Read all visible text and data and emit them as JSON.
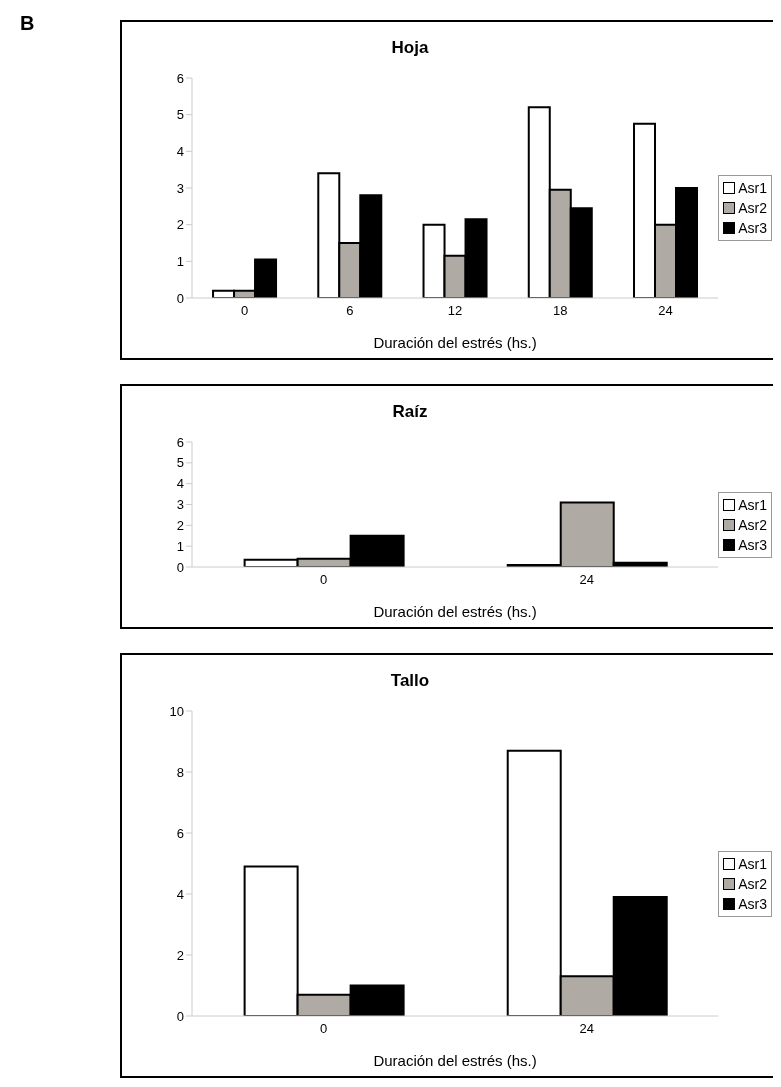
{
  "chart_data": [
    {
      "type": "bar",
      "title": "Hoja",
      "xlabel": "Duración del estrés (hs.)",
      "categories": [
        "0",
        "6",
        "12",
        "18",
        "24"
      ],
      "annotations": [
        "B"
      ],
      "series": [
        {
          "name": "Asr1",
          "color": "#ffffff",
          "values": [
            0.2,
            3.4,
            2.0,
            5.2,
            4.75
          ]
        },
        {
          "name": "Asr2",
          "color": "#b0aaa5",
          "values": [
            0.2,
            1.5,
            1.15,
            2.95,
            2.0
          ]
        },
        {
          "name": "Asr3",
          "color": "#000000",
          "values": [
            1.05,
            2.8,
            2.15,
            2.45,
            3.0
          ]
        }
      ],
      "ylim": [
        0,
        6
      ],
      "yticks": [
        0,
        1,
        2,
        3,
        4,
        5,
        6
      ],
      "legend": "right"
    },
    {
      "type": "bar",
      "title": "Raíz",
      "xlabel": "Duración del estrés (hs.)",
      "categories": [
        "0",
        "24"
      ],
      "series": [
        {
          "name": "Asr1",
          "color": "#ffffff",
          "values": [
            0.35,
            0.1
          ]
        },
        {
          "name": "Asr2",
          "color": "#b0aaa5",
          "values": [
            0.4,
            3.1
          ]
        },
        {
          "name": "Asr3",
          "color": "#000000",
          "values": [
            1.5,
            0.2
          ]
        }
      ],
      "ylim": [
        0,
        6
      ],
      "yticks": [
        0,
        1,
        2,
        3,
        4,
        5,
        6
      ],
      "legend": "right"
    },
    {
      "type": "bar",
      "title": "Tallo",
      "xlabel": "Duración del estrés (hs.)",
      "categories": [
        "0",
        "24"
      ],
      "series": [
        {
          "name": "Asr1",
          "color": "#ffffff",
          "values": [
            4.9,
            8.7
          ]
        },
        {
          "name": "Asr2",
          "color": "#b0aaa5",
          "values": [
            0.7,
            1.3
          ]
        },
        {
          "name": "Asr3",
          "color": "#000000",
          "values": [
            1.0,
            3.9
          ]
        }
      ],
      "ylim": [
        0,
        10
      ],
      "yticks": [
        0,
        2,
        4,
        6,
        8,
        10
      ],
      "legend": "right"
    }
  ]
}
